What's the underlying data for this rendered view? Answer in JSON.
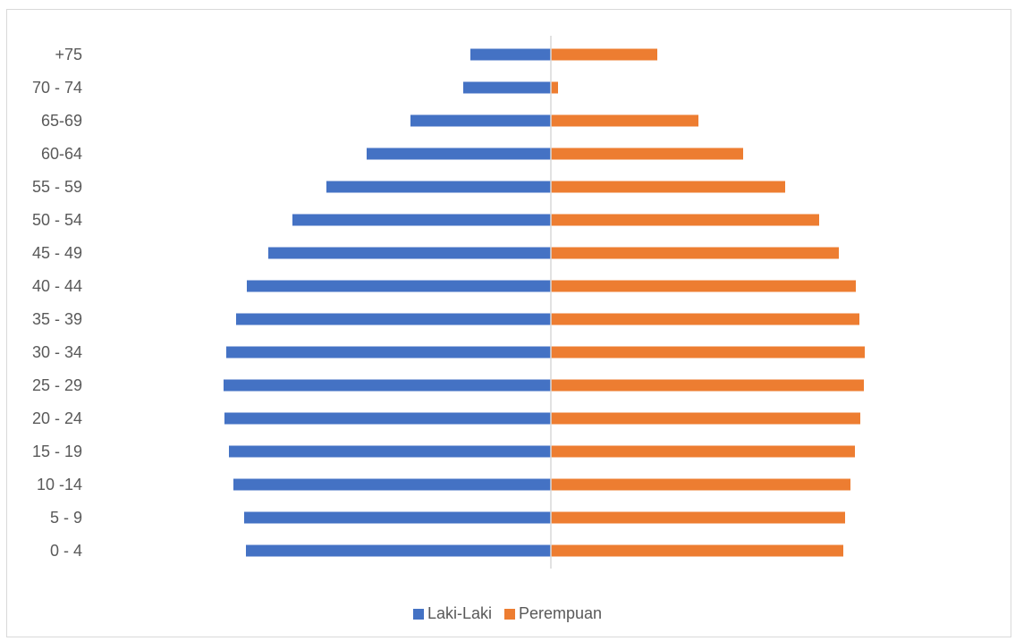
{
  "chart_data": {
    "type": "bar",
    "orientation": "horizontal",
    "layout": "population-pyramid",
    "categories": [
      "0 - 4",
      "5 - 9",
      "10 -14",
      "15 - 19",
      "20 - 24",
      "25 - 29",
      "30 - 34",
      "35 - 39",
      "40 - 44",
      "45 - 49",
      "50 - 54",
      "55 - 59",
      "60-64",
      "65-69",
      "70 - 74",
      "+75"
    ],
    "series": [
      {
        "name": "Laki-Laki",
        "color": "#4472c4",
        "side": "left",
        "values": [
          341,
          343,
          355,
          360,
          365,
          366,
          363,
          352,
          340,
          316,
          289,
          251,
          206,
          157,
          98,
          90
        ]
      },
      {
        "name": "Perempuan",
        "color": "#ed7d31",
        "side": "right",
        "values": [
          327,
          329,
          335,
          340,
          346,
          350,
          351,
          345,
          341,
          322,
          300,
          262,
          215,
          165,
          8,
          119
        ]
      }
    ],
    "title": "",
    "xlabel": "",
    "ylabel": "",
    "xlim": [
      -400,
      400
    ],
    "grid": false,
    "legend_position": "bottom"
  },
  "colors": {
    "male": "#4472c4",
    "female": "#ed7d31",
    "axis": "#d9d9d9",
    "text": "#595959"
  }
}
